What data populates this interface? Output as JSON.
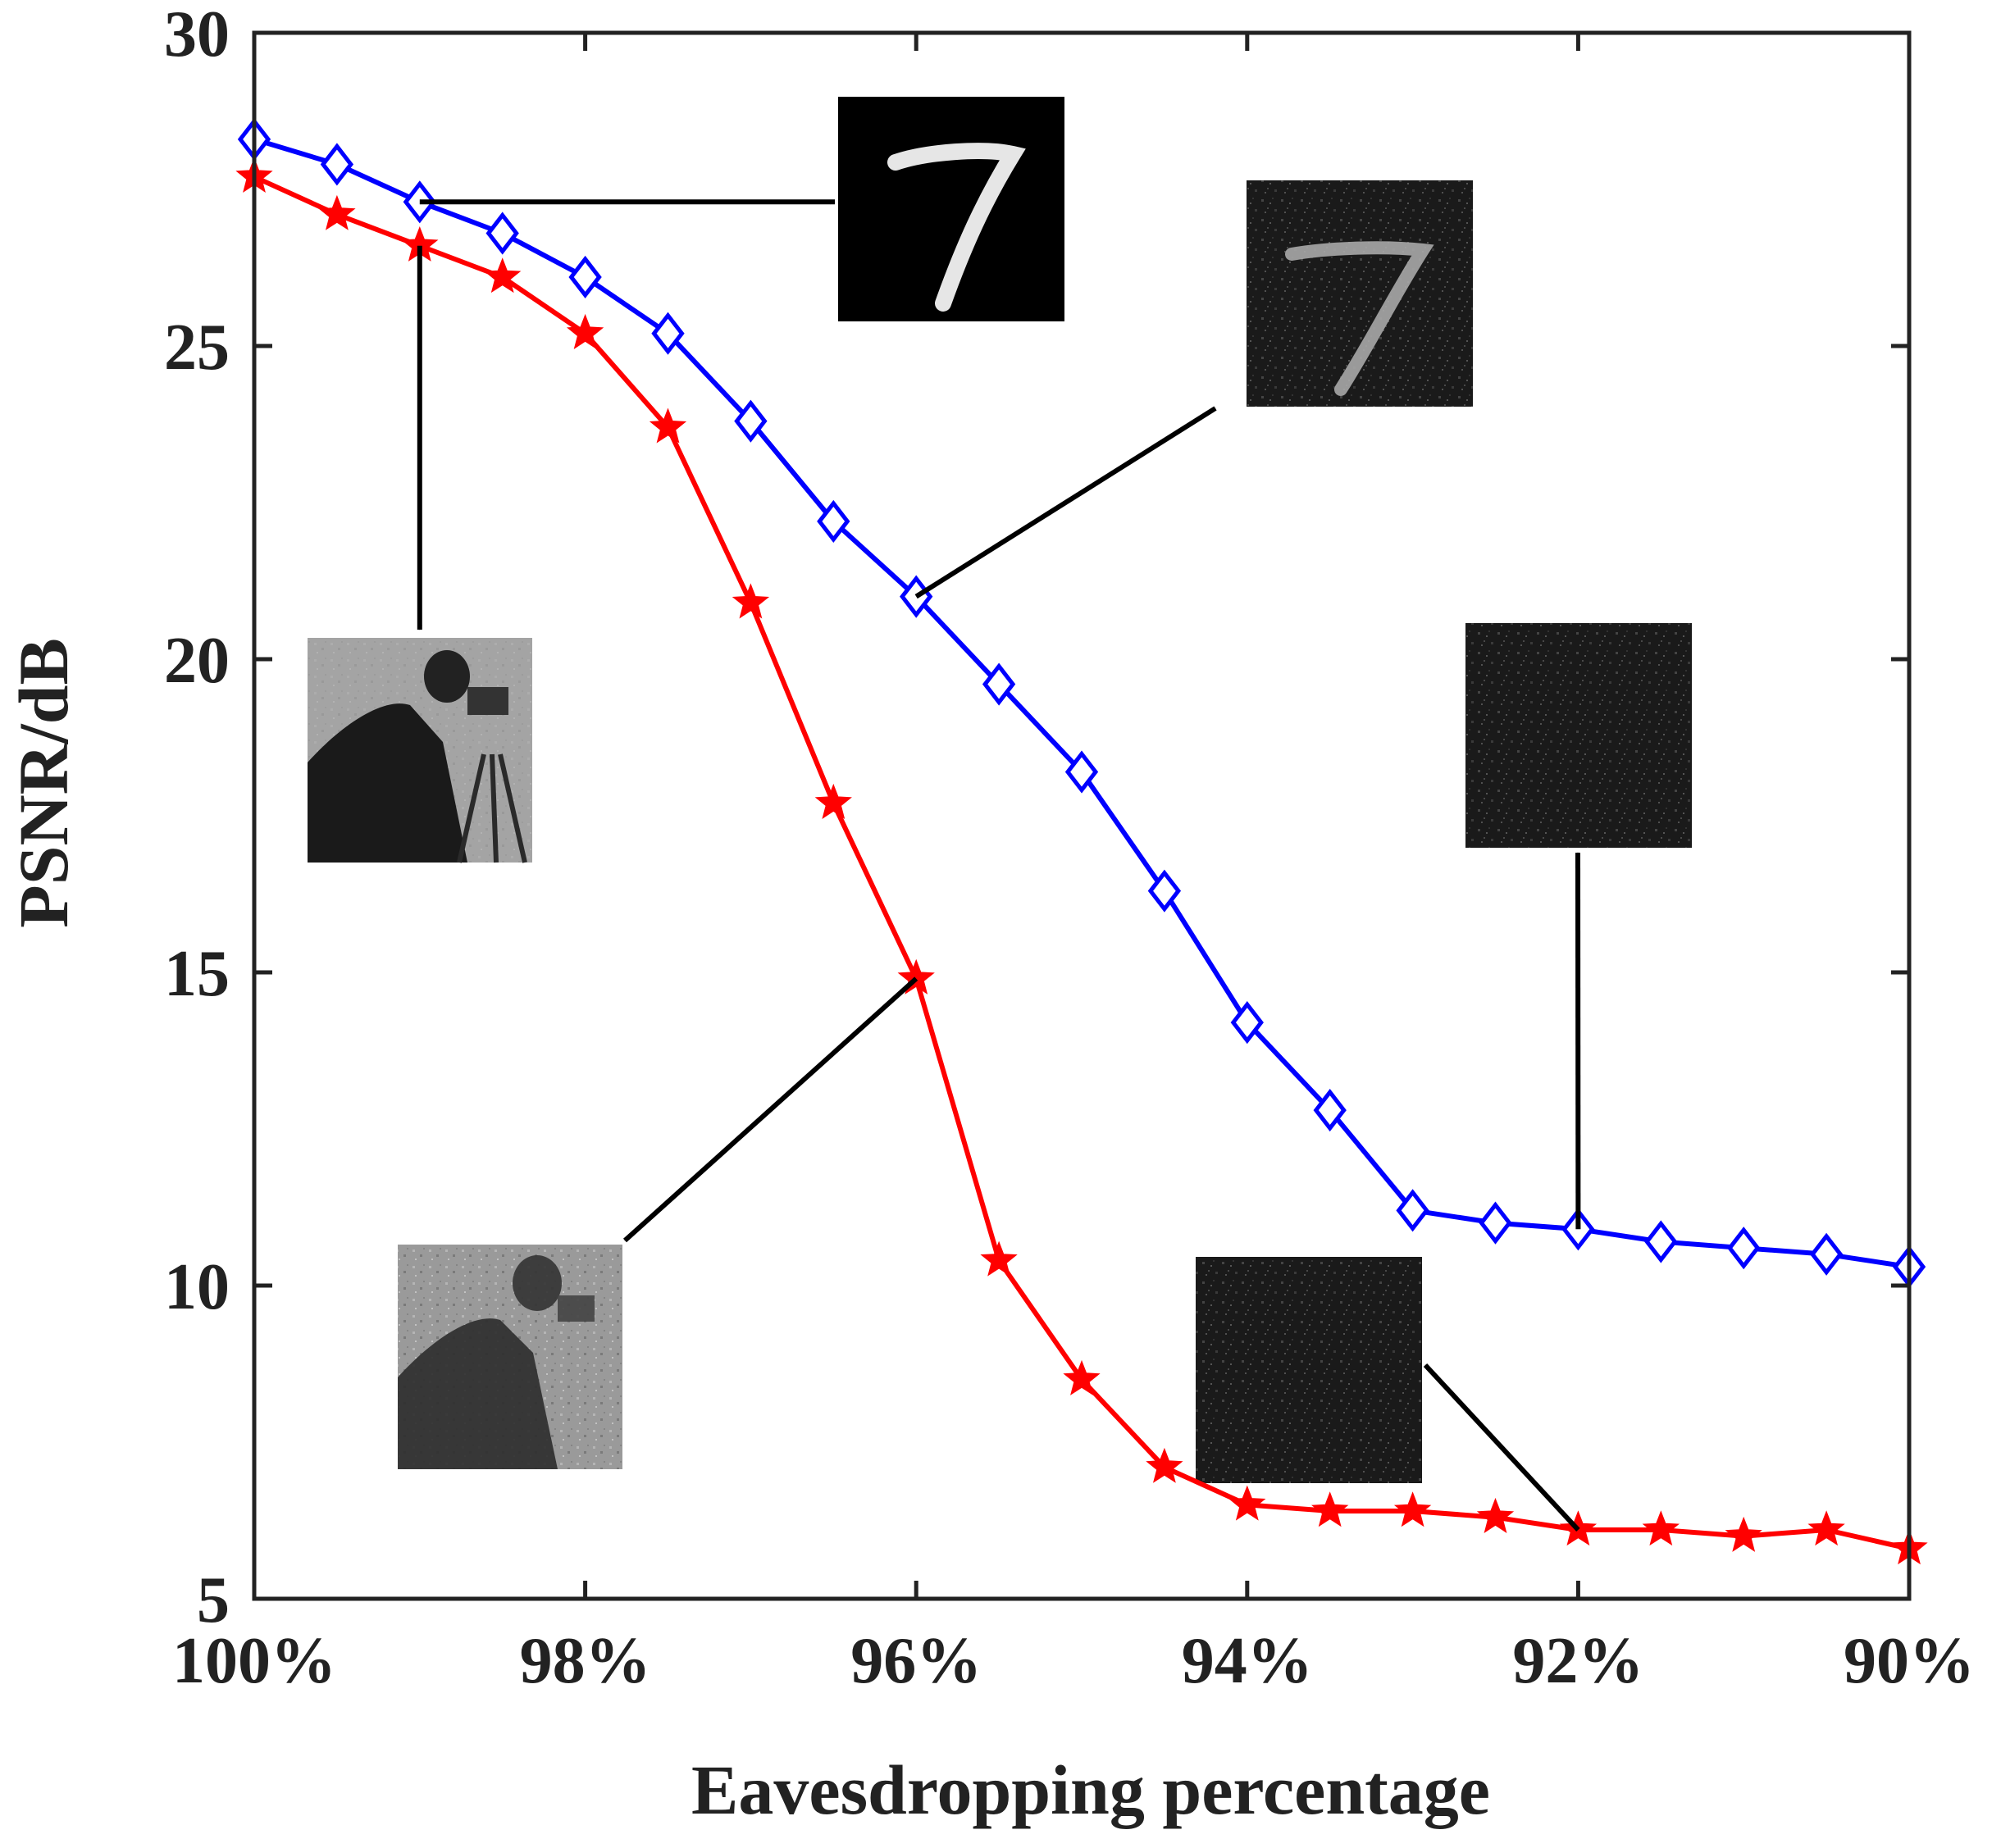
{
  "chart_data": {
    "type": "line",
    "title": "",
    "xlabel": "Eavesdropping percentage",
    "ylabel": "PSNR/dB",
    "x": [
      100,
      99.5,
      99,
      98.5,
      98,
      97.5,
      97,
      96.5,
      96,
      95.5,
      95,
      94.5,
      94,
      93.5,
      93,
      92.5,
      92,
      91.5,
      91,
      90.5,
      90
    ],
    "xlim": [
      100,
      90
    ],
    "ylim": [
      5,
      30
    ],
    "x_ticks": [
      100,
      98,
      96,
      94,
      92,
      90
    ],
    "x_tick_labels": [
      "100%",
      "98%",
      "96%",
      "94%",
      "92%",
      "90%"
    ],
    "y_ticks": [
      5,
      10,
      15,
      20,
      25,
      30
    ],
    "y_tick_labels": [
      "5",
      "10",
      "15",
      "20",
      "25",
      "30"
    ],
    "grid": false,
    "series": [
      {
        "name": "blue-diamond",
        "color": "#0000ff",
        "marker": "diamond",
        "values": [
          28.3,
          27.9,
          27.3,
          26.8,
          26.1,
          25.2,
          23.8,
          22.2,
          21.0,
          19.6,
          18.2,
          16.3,
          14.2,
          12.8,
          11.2,
          11.0,
          10.9,
          10.7,
          10.6,
          10.5,
          10.3
        ]
      },
      {
        "name": "red-star",
        "color": "#ff0000",
        "marker": "star",
        "values": [
          27.7,
          27.1,
          26.6,
          26.1,
          25.2,
          23.7,
          20.9,
          17.7,
          14.9,
          10.4,
          8.5,
          7.1,
          6.5,
          6.4,
          6.4,
          6.3,
          6.1,
          6.1,
          6.0,
          6.1,
          5.8
        ]
      }
    ],
    "annotations": [
      {
        "name": "inset-digit-clean",
        "from": {
          "x": 99,
          "y": 27.3
        },
        "image": "handwritten digit 7, clean"
      },
      {
        "name": "inset-digit-noisy",
        "from": {
          "x": 96,
          "y": 21.0
        },
        "image": "handwritten digit 7, noisy"
      },
      {
        "name": "inset-noise-blue",
        "from": {
          "x": 92,
          "y": 10.9
        },
        "image": "pure noise"
      },
      {
        "name": "inset-cameraman-clean",
        "from": {
          "x": 99,
          "y": 26.6
        },
        "image": "cameraman photo, clean"
      },
      {
        "name": "inset-cameraman-noisy",
        "from": {
          "x": 96,
          "y": 14.9
        },
        "image": "cameraman photo, noisy"
      },
      {
        "name": "inset-noise-red",
        "from": {
          "x": 92,
          "y": 6.1
        },
        "image": "pure noise"
      }
    ]
  }
}
